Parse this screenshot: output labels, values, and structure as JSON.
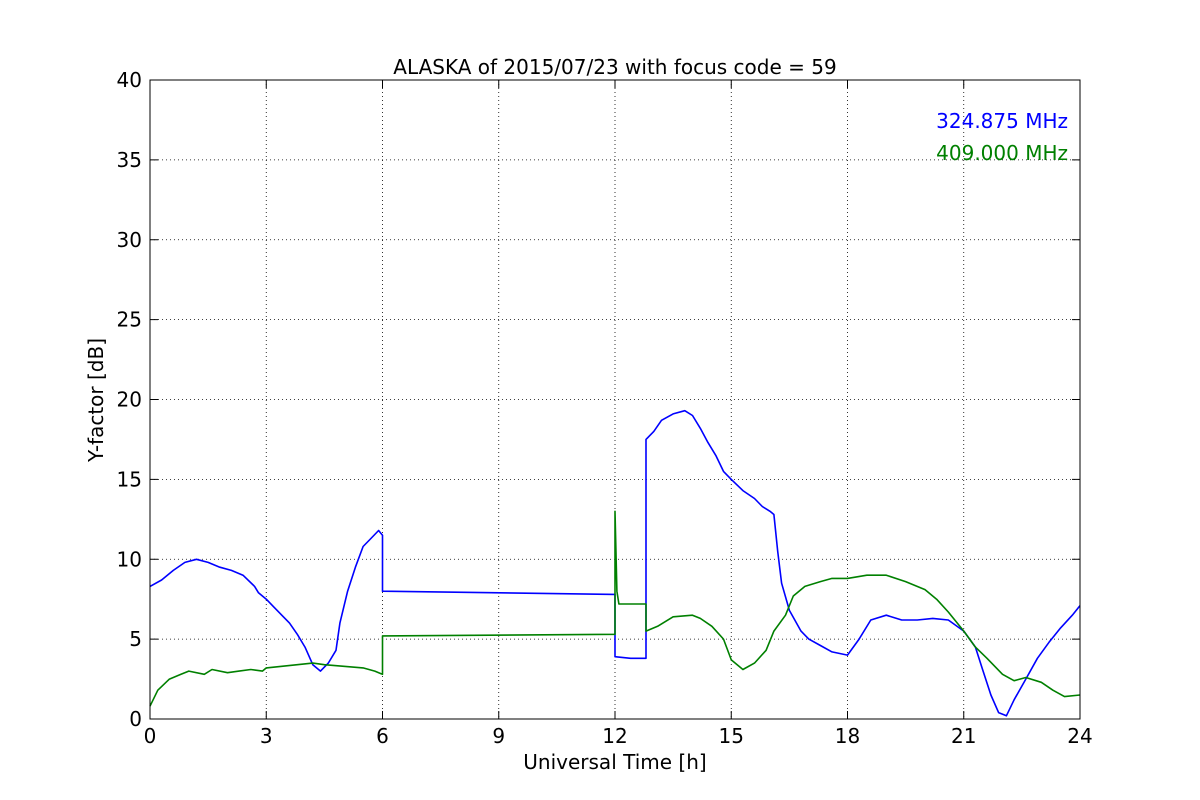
{
  "chart_data": {
    "type": "line",
    "title": "ALASKA of 2015/07/23 with focus code = 59",
    "xlabel": "Universal Time [h]",
    "ylabel": "Y-factor [dB]",
    "xlim": [
      0,
      24
    ],
    "ylim": [
      0,
      40
    ],
    "xticks": [
      0,
      3,
      6,
      9,
      12,
      15,
      18,
      21,
      24
    ],
    "yticks": [
      0,
      5,
      10,
      15,
      20,
      25,
      30,
      35,
      40
    ],
    "grid": true,
    "legend_position": "top-right",
    "series": [
      {
        "name": "324.875 MHz",
        "color": "#0000ff",
        "x": [
          0,
          0.3,
          0.6,
          0.9,
          1.2,
          1.5,
          1.8,
          2.1,
          2.4,
          2.7,
          2.8,
          3.0,
          3.2,
          3.4,
          3.6,
          3.8,
          4.0,
          4.2,
          4.4,
          4.6,
          4.8,
          4.9,
          5.1,
          5.3,
          5.5,
          5.7,
          5.9,
          6.0,
          6.0,
          12.0,
          12.0,
          12.4,
          12.8,
          12.8,
          13.0,
          13.2,
          13.5,
          13.8,
          14.0,
          14.2,
          14.4,
          14.6,
          14.8,
          15.0,
          15.3,
          15.6,
          15.8,
          16.0,
          16.1,
          16.2,
          16.3,
          16.5,
          16.8,
          17.0,
          17.3,
          17.6,
          18.0,
          18.3,
          18.6,
          19.0,
          19.4,
          19.8,
          20.2,
          20.6,
          21.0,
          21.3,
          21.5,
          21.7,
          21.9,
          22.1,
          22.3,
          22.6,
          22.9,
          23.2,
          23.5,
          23.8,
          24.0
        ],
        "y": [
          8.3,
          8.7,
          9.3,
          9.8,
          10.0,
          9.8,
          9.5,
          9.3,
          9.0,
          8.3,
          7.9,
          7.5,
          7.0,
          6.5,
          6.0,
          5.3,
          4.5,
          3.4,
          3.0,
          3.5,
          4.3,
          6.0,
          8.0,
          9.5,
          10.8,
          11.3,
          11.8,
          11.5,
          8.0,
          7.8,
          3.9,
          3.8,
          3.8,
          17.5,
          18.0,
          18.7,
          19.1,
          19.3,
          19.0,
          18.2,
          17.3,
          16.5,
          15.5,
          15.0,
          14.3,
          13.8,
          13.3,
          13.0,
          12.8,
          10.5,
          8.5,
          6.8,
          5.5,
          5.0,
          4.6,
          4.2,
          4.0,
          5.0,
          6.2,
          6.5,
          6.2,
          6.2,
          6.3,
          6.2,
          5.5,
          4.5,
          3.0,
          1.5,
          0.4,
          0.2,
          1.2,
          2.5,
          3.8,
          4.8,
          5.7,
          6.5,
          7.1
        ]
      },
      {
        "name": "409.000 MHz",
        "color": "#008000",
        "x": [
          0,
          0.2,
          0.5,
          0.8,
          1.0,
          1.4,
          1.6,
          2.0,
          2.3,
          2.6,
          2.9,
          3.0,
          3.4,
          3.8,
          4.2,
          4.5,
          5.0,
          5.5,
          5.8,
          6.0,
          6.0,
          12.0,
          12.0,
          12.05,
          12.1,
          12.4,
          12.8,
          12.8,
          13.1,
          13.5,
          14.0,
          14.2,
          14.5,
          14.8,
          15.0,
          15.3,
          15.6,
          15.9,
          16.1,
          16.4,
          16.6,
          16.9,
          17.3,
          17.6,
          18.0,
          18.5,
          19.0,
          19.5,
          20.0,
          20.3,
          20.6,
          21.0,
          21.3,
          21.6,
          22.0,
          22.3,
          22.6,
          23.0,
          23.3,
          23.6,
          24.0
        ],
        "y": [
          0.8,
          1.8,
          2.5,
          2.8,
          3.0,
          2.8,
          3.1,
          2.9,
          3.0,
          3.1,
          3.0,
          3.2,
          3.3,
          3.4,
          3.5,
          3.4,
          3.3,
          3.2,
          3.0,
          2.8,
          5.2,
          5.3,
          13.0,
          8.0,
          7.2,
          7.2,
          7.2,
          5.5,
          5.8,
          6.4,
          6.5,
          6.3,
          5.8,
          5.0,
          3.7,
          3.1,
          3.5,
          4.3,
          5.5,
          6.5,
          7.7,
          8.3,
          8.6,
          8.8,
          8.8,
          9.0,
          9.0,
          8.6,
          8.1,
          7.5,
          6.7,
          5.5,
          4.5,
          3.8,
          2.8,
          2.4,
          2.6,
          2.3,
          1.8,
          1.4,
          1.5
        ]
      }
    ]
  }
}
